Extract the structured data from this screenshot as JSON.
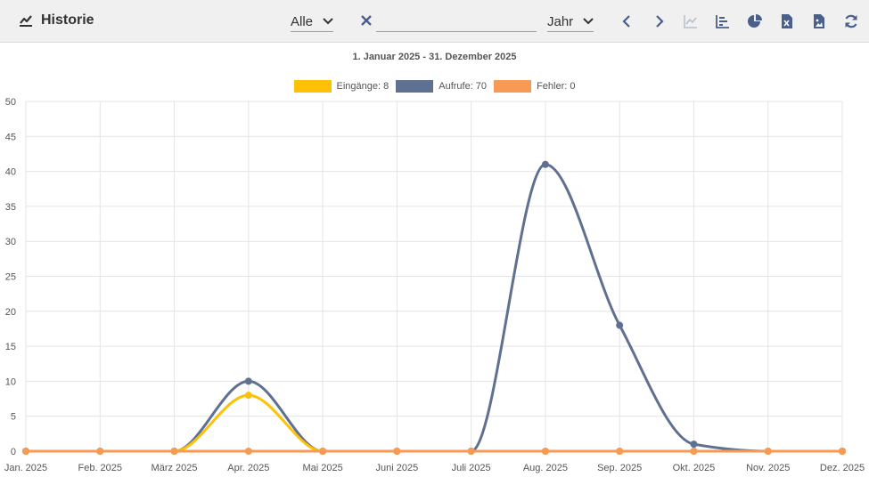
{
  "header": {
    "title": "Historie",
    "filter_value": "Alle",
    "period_value": "Jahr",
    "search_value": "",
    "icons": [
      "chart-line-icon",
      "chevron-down-icon",
      "close-icon",
      "chevron-left-icon",
      "chevron-right-icon",
      "line-chart-icon",
      "bar-chart-icon",
      "pie-chart-icon",
      "excel-file-icon",
      "image-file-icon",
      "refresh-icon"
    ]
  },
  "colors": {
    "eingaenge": "#FFC107",
    "aufrufe": "#5F7090",
    "fehler": "#F79A56",
    "accent": "#4A5F8C"
  },
  "chart_data": {
    "type": "line",
    "title": "1. Januar 2025 - 31. Dezember 2025",
    "categories": [
      "Jan. 2025",
      "Feb. 2025",
      "März 2025",
      "Apr. 2025",
      "Mai 2025",
      "Juni 2025",
      "Juli 2025",
      "Aug. 2025",
      "Sep. 2025",
      "Okt. 2025",
      "Nov. 2025",
      "Dez. 2025"
    ],
    "series": [
      {
        "name": "Aufrufe",
        "legend": "Aufrufe: 70",
        "values": [
          0,
          0,
          0,
          10,
          0,
          0,
          0,
          41,
          18,
          1,
          0,
          0
        ]
      },
      {
        "name": "Eingänge",
        "legend": "Eingänge: 8",
        "values": [
          0,
          0,
          0,
          8,
          0,
          0,
          0,
          0,
          0,
          0,
          0,
          0
        ]
      },
      {
        "name": "Fehler",
        "legend": "Fehler: 0",
        "values": [
          0,
          0,
          0,
          0,
          0,
          0,
          0,
          0,
          0,
          0,
          0,
          0
        ]
      }
    ],
    "legend_order": [
      "Eingänge",
      "Aufrufe",
      "Fehler"
    ],
    "legend_position": "top",
    "ylim": [
      0,
      50
    ],
    "yticks": [
      0,
      5,
      10,
      15,
      20,
      25,
      30,
      35,
      40,
      45,
      50
    ],
    "grid": true,
    "curve": "smooth"
  }
}
